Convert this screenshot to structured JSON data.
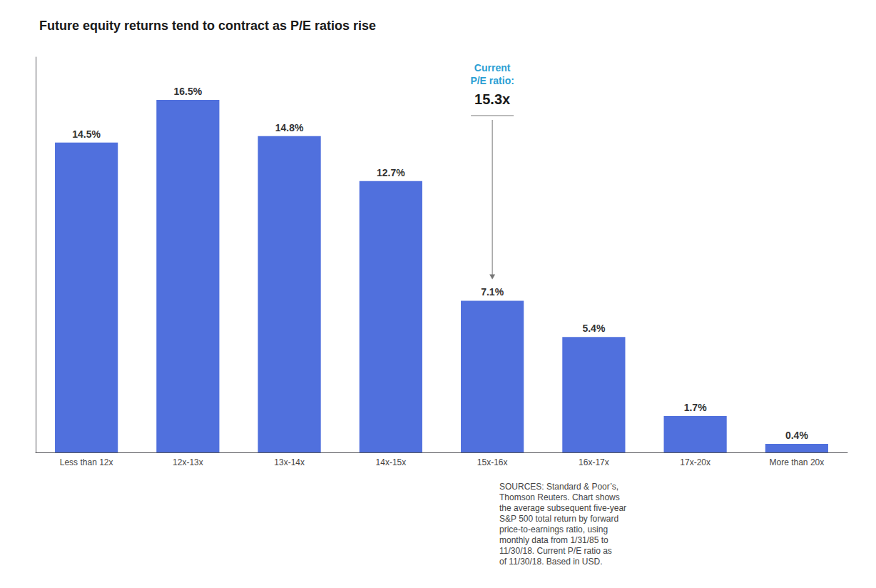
{
  "chart_data": {
    "type": "bar",
    "title": "Future equity returns tend to contract as P/E ratios rise",
    "categories": [
      "Less than 12x",
      "12x-13x",
      "13x-14x",
      "14x-15x",
      "15x-16x",
      "16x-17x",
      "17x-20x",
      "More than 20x"
    ],
    "values": [
      14.5,
      16.5,
      14.8,
      12.7,
      7.1,
      5.4,
      1.7,
      0.4
    ],
    "value_labels": [
      "14.5%",
      "16.5%",
      "14.8%",
      "12.7%",
      "7.1%",
      "5.4%",
      "1.7%",
      "0.4%"
    ],
    "data_labels": true,
    "ylim": [
      0,
      18.5
    ],
    "tick_labels": "x",
    "grid": false,
    "annotations": [
      {
        "text": "Current\nP/E ratio:",
        "category": "15x-16x",
        "color": "#2b9fd4"
      },
      {
        "text": "15.3x",
        "category": "15x-16x",
        "color": "#1a1a1a"
      },
      {
        "text": "SOURCES: Standard & Poor’s,\nThomson Reuters. Chart shows\nthe average subsequent five-year\nS&P 500 total return by forward\nprice-to-earnings ratio, using\nmonthly data from 1/31/85 to\n11/30/18. Current P/E ratio as\nof 11/30/18. Based in USD."
      }
    ]
  }
}
